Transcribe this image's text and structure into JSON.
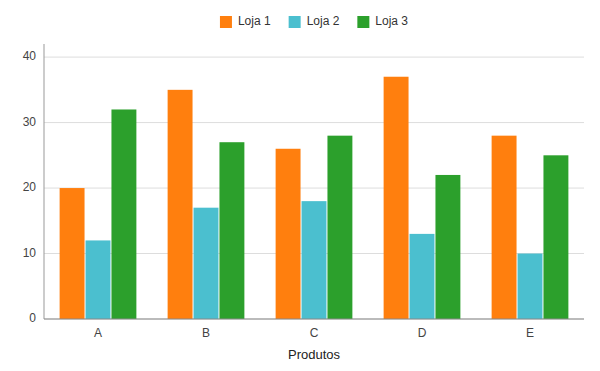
{
  "chart_data": {
    "type": "bar",
    "categories": [
      "A",
      "B",
      "C",
      "D",
      "E"
    ],
    "series": [
      {
        "name": "Loja 1",
        "color": "#FF7F0E",
        "values": [
          20,
          35,
          26,
          37,
          28
        ]
      },
      {
        "name": "Loja 2",
        "color": "#4BBFCF",
        "values": [
          12,
          17,
          18,
          13,
          10
        ]
      },
      {
        "name": "Loja 3",
        "color": "#2CA02C",
        "values": [
          32,
          27,
          28,
          22,
          25
        ]
      }
    ],
    "xlabel": "Produtos",
    "ylim": [
      0,
      42
    ],
    "yticks": [
      0,
      10,
      20,
      30,
      40
    ],
    "grid": true,
    "legend": "top"
  }
}
